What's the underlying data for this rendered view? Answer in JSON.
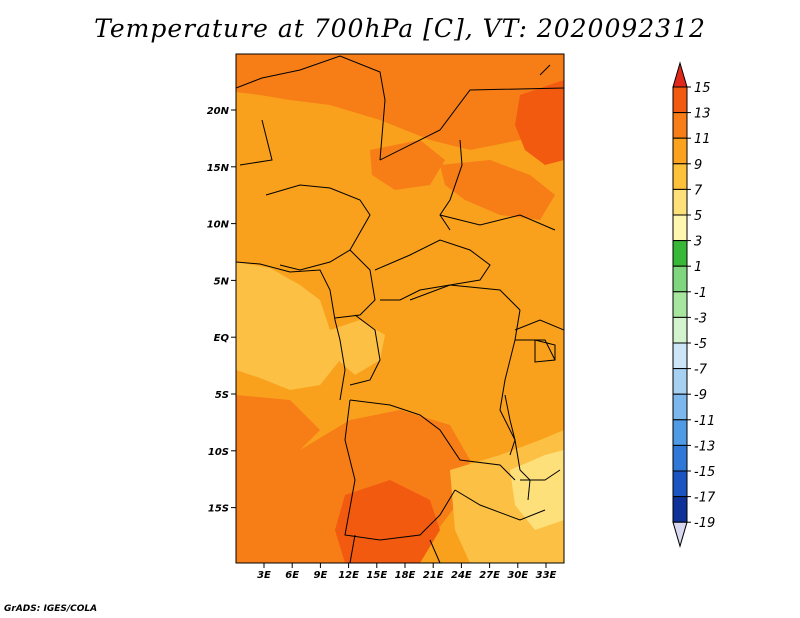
{
  "title": "Temperature at 700hPa [C], VT: 2020092312",
  "credit": "GrADS: IGES/COLA",
  "map": {
    "lon_ticks": [
      "3E",
      "6E",
      "9E",
      "12E",
      "15E",
      "18E",
      "21E",
      "24E",
      "27E",
      "30E",
      "33E"
    ],
    "lat_ticks": [
      "20N",
      "15N",
      "10N",
      "5N",
      "EQ",
      "5S",
      "10S",
      "15S"
    ]
  },
  "colorbar": {
    "labels": [
      "15",
      "13",
      "11",
      "9",
      "7",
      "5",
      "3",
      "1",
      "-1",
      "-3",
      "-5",
      "-7",
      "-9",
      "-11",
      "-13",
      "-15",
      "-17",
      "-19"
    ],
    "colors": [
      "#e0291a",
      "#f25a10",
      "#f77d17",
      "#fba31e",
      "#fdc13c",
      "#fde07a",
      "#fff6b0",
      "#38b838",
      "#7fd67f",
      "#a8e6a0",
      "#d2f3cd",
      "#cce6f7",
      "#a6d1f3",
      "#7cb8ee",
      "#4f9be6",
      "#2f78d8",
      "#1a55c2",
      "#0e3299",
      "#0a1970",
      "#d8d8f0"
    ]
  },
  "map_colors": {
    "t9": "#f9a11c",
    "t11": "#f77d17",
    "t13": "#f25a10",
    "t7": "#fcc044",
    "t5": "#fde07a",
    "border": "#000000"
  }
}
